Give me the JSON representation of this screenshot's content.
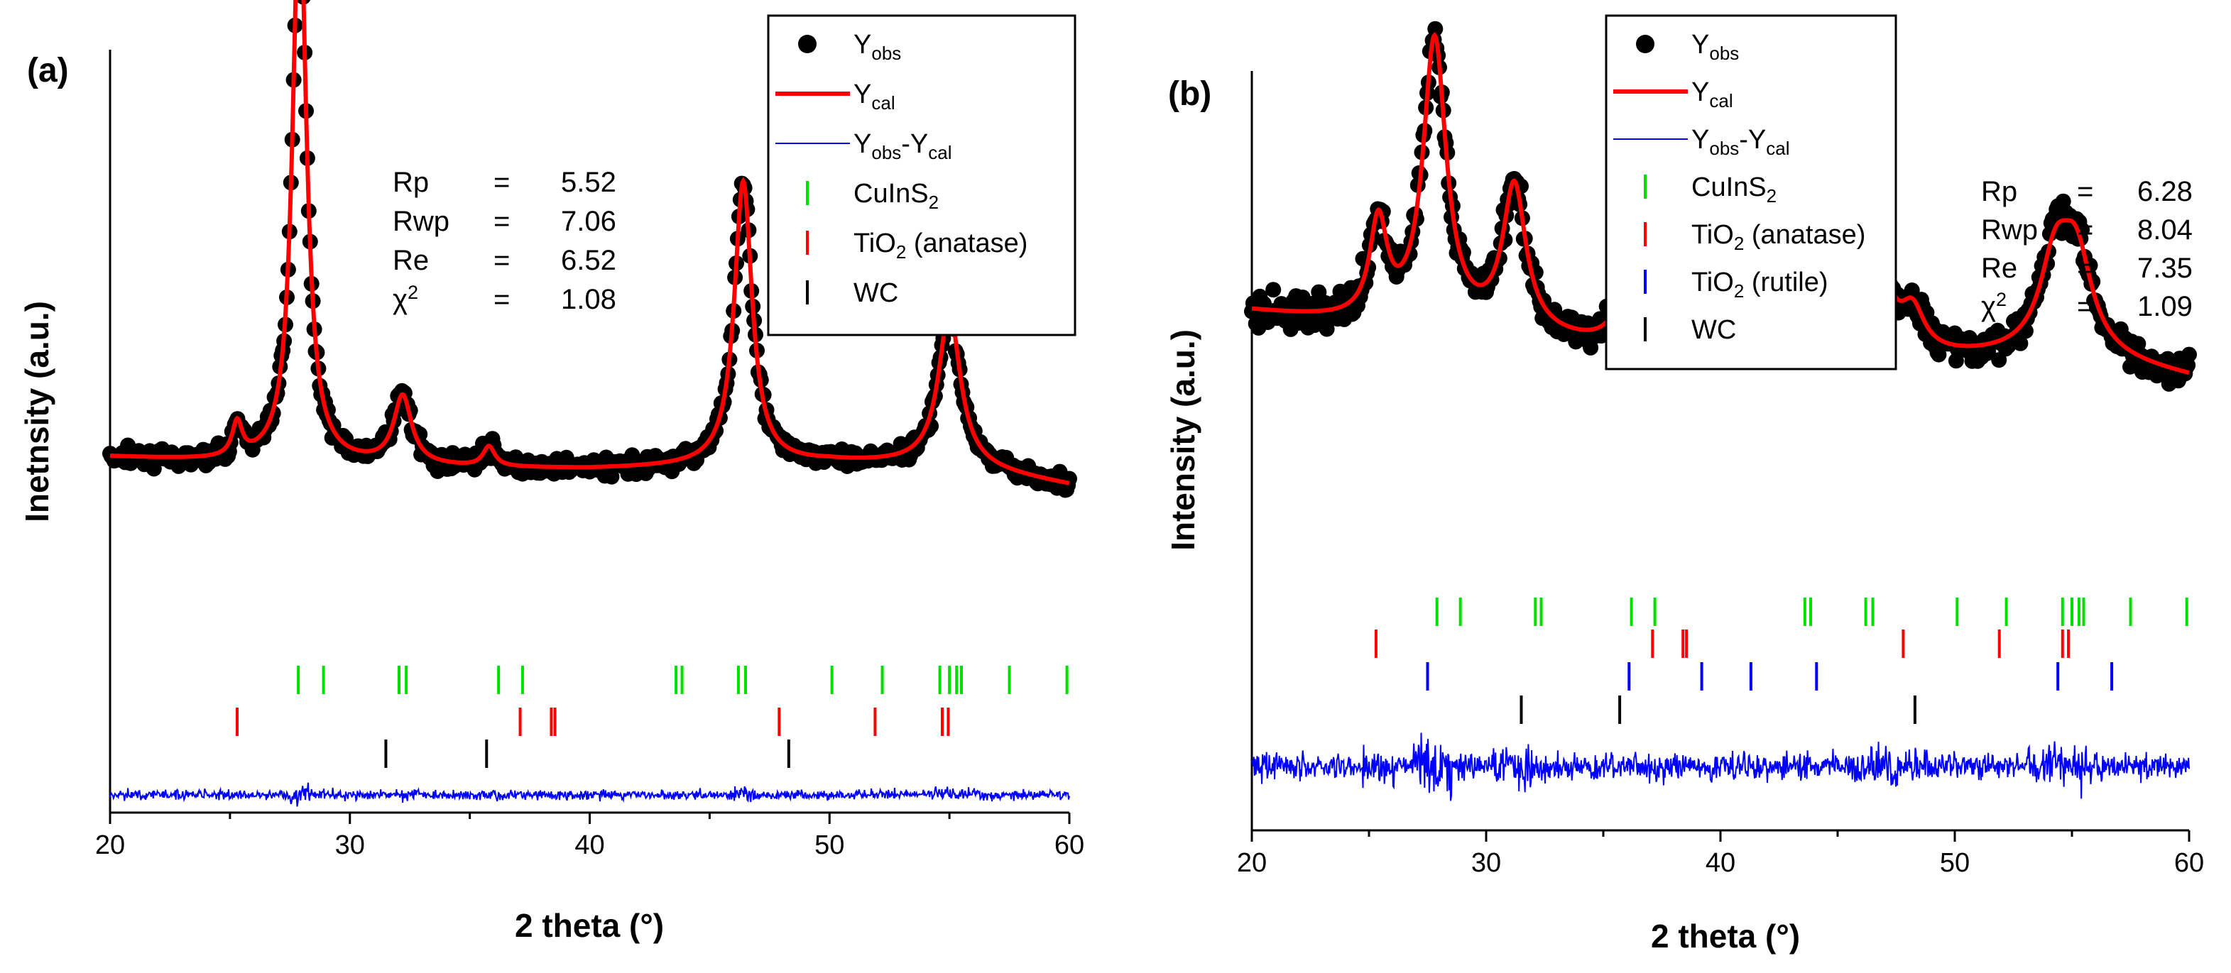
{
  "chart_data": [
    {
      "panel_label": "(a)",
      "type": "scatter",
      "xlabel": "2 theta (°)",
      "ylabel": "Inetnsity (a.u.)",
      "xlim": [
        20,
        60
      ],
      "xticks": [
        "20",
        "30",
        "40",
        "50",
        "60"
      ],
      "legend_position": "top-right",
      "legend": [
        {
          "main": "Y",
          "sub": "obs",
          "mid": "",
          "sub2": "",
          "tail": "",
          "marker": "dot",
          "color": "#000000"
        },
        {
          "main": "Y",
          "sub": "cal",
          "mid": "",
          "sub2": "",
          "tail": "",
          "marker": "line",
          "color": "#ff0000"
        },
        {
          "main": "Y",
          "sub": "obs",
          "mid": "-Y",
          "sub2": "cal",
          "tail": "",
          "marker": "thinline",
          "color": "#0000ff"
        },
        {
          "main": "CuInS",
          "sub": "2",
          "mid": "",
          "sub2": "",
          "tail": "",
          "marker": "tick",
          "color": "#00e000"
        },
        {
          "main": "TiO",
          "sub": "2",
          "mid": "",
          "sub2": "",
          "tail": " (anatase)",
          "marker": "tick",
          "color": "#ff0000"
        },
        {
          "main": "WC",
          "sub": "",
          "mid": "",
          "sub2": "",
          "tail": "",
          "marker": "tick",
          "color": "#000000"
        }
      ],
      "stats": [
        {
          "name": "Rp",
          "sup": "",
          "eq": "=",
          "value": "5.52"
        },
        {
          "name": "Rwp",
          "sup": "",
          "eq": "=",
          "value": "7.06"
        },
        {
          "name": "Re",
          "sup": "",
          "eq": "=",
          "value": "6.52"
        },
        {
          "name": "χ",
          "sup": "2",
          "eq": "=",
          "value": "1.08"
        }
      ],
      "profile": {
        "background": {
          "x": [
            20,
            25,
            30,
            35,
            40,
            45,
            50,
            55,
            60
          ],
          "y": [
            0.37,
            0.36,
            0.355,
            0.35,
            0.348,
            0.352,
            0.36,
            0.355,
            0.32
          ]
        },
        "peaks": [
          {
            "x": 25.3,
            "height": 0.06,
            "width": 0.25
          },
          {
            "x": 27.9,
            "height": 1.0,
            "width": 0.35
          },
          {
            "x": 32.2,
            "height": 0.12,
            "width": 0.45
          },
          {
            "x": 35.8,
            "height": 0.035,
            "width": 0.3
          },
          {
            "x": 46.4,
            "height": 0.5,
            "width": 0.45
          },
          {
            "x": 55.0,
            "height": 0.27,
            "width": 0.55
          }
        ],
        "noise": 0.015,
        "difference_noise": 0.025
      },
      "reflections": [
        {
          "phase": "CuInS2",
          "color": "#00e000",
          "positions": [
            27.85,
            28.9,
            32.05,
            32.35,
            36.2,
            37.2,
            43.6,
            43.85,
            46.2,
            46.5,
            50.1,
            52.2,
            54.6,
            55.0,
            55.3,
            55.5,
            57.5,
            59.9
          ]
        },
        {
          "phase": "TiO2 (anatase)",
          "color": "#ff0000",
          "positions": [
            25.3,
            37.1,
            38.4,
            38.55,
            47.9,
            51.9,
            54.7,
            54.95
          ]
        },
        {
          "phase": "WC",
          "color": "#000000",
          "positions": [
            31.5,
            35.7,
            48.3
          ]
        }
      ]
    },
    {
      "panel_label": "(b)",
      "type": "scatter",
      "xlabel": "2 theta (°)",
      "ylabel": "Intensity (a.u.)",
      "xlim": [
        20,
        60
      ],
      "xticks": [
        "20",
        "30",
        "40",
        "50",
        "60"
      ],
      "legend_position": "top-left",
      "legend": [
        {
          "main": "Y",
          "sub": "obs",
          "mid": "",
          "sub2": "",
          "tail": "",
          "marker": "dot",
          "color": "#000000"
        },
        {
          "main": "Y",
          "sub": "cal",
          "mid": "",
          "sub2": "",
          "tail": "",
          "marker": "line",
          "color": "#ff0000"
        },
        {
          "main": "Y",
          "sub": "obs",
          "mid": "-Y",
          "sub2": "cal",
          "tail": "",
          "marker": "thinline",
          "color": "#0000ff"
        },
        {
          "main": "CuInS",
          "sub": "2",
          "mid": "",
          "sub2": "",
          "tail": "",
          "marker": "tick",
          "color": "#00e000"
        },
        {
          "main": "TiO",
          "sub": "2",
          "mid": "",
          "sub2": "",
          "tail": " (anatase)",
          "marker": "tick",
          "color": "#ff0000"
        },
        {
          "main": "TiO",
          "sub": "2",
          "mid": "",
          "sub2": "",
          "tail": " (rutile)",
          "marker": "tick",
          "color": "#0000ff"
        },
        {
          "main": "WC",
          "sub": "",
          "mid": "",
          "sub2": "",
          "tail": "",
          "marker": "tick",
          "color": "#000000"
        }
      ],
      "stats": [
        {
          "name": "Rp",
          "sup": "",
          "eq": "=",
          "value": "6.28"
        },
        {
          "name": "Rwp",
          "sup": "",
          "eq": "=",
          "value": "8.04"
        },
        {
          "name": "Re",
          "sup": "",
          "eq": "=",
          "value": "7.35"
        },
        {
          "name": "χ",
          "sup": "2",
          "eq": "=",
          "value": "1.09"
        }
      ],
      "profile": {
        "background": {
          "x": [
            20,
            25,
            30,
            35,
            40,
            45,
            50,
            55,
            60
          ],
          "y": [
            0.55,
            0.52,
            0.5,
            0.47,
            0.44,
            0.43,
            0.44,
            0.45,
            0.4
          ]
        },
        "peaks": [
          {
            "x": 25.4,
            "height": 0.22,
            "width": 0.45
          },
          {
            "x": 27.8,
            "height": 0.65,
            "width": 0.6
          },
          {
            "x": 31.2,
            "height": 0.33,
            "width": 0.6
          },
          {
            "x": 35.9,
            "height": 0.11,
            "width": 0.6
          },
          {
            "x": 41.3,
            "height": 0.1,
            "width": 0.6
          },
          {
            "x": 44.2,
            "height": 0.06,
            "width": 0.7
          },
          {
            "x": 46.5,
            "height": 0.3,
            "width": 0.7
          },
          {
            "x": 48.2,
            "height": 0.09,
            "width": 0.6
          },
          {
            "x": 54.3,
            "height": 0.2,
            "width": 0.8
          },
          {
            "x": 55.2,
            "height": 0.2,
            "width": 0.8
          }
        ],
        "noise": 0.035,
        "difference_noise": 0.06
      },
      "reflections": [
        {
          "phase": "CuInS2",
          "color": "#00e000",
          "positions": [
            27.9,
            28.9,
            32.1,
            32.35,
            36.2,
            37.2,
            43.6,
            43.85,
            46.2,
            46.5,
            50.1,
            52.2,
            54.6,
            55.0,
            55.3,
            55.5,
            57.5,
            59.9
          ]
        },
        {
          "phase": "TiO2 (anatase)",
          "color": "#ff0000",
          "positions": [
            25.3,
            37.1,
            38.4,
            38.55,
            47.8,
            51.9,
            54.6,
            54.85
          ]
        },
        {
          "phase": "TiO2 (rutile)",
          "color": "#0000ff",
          "positions": [
            27.5,
            36.1,
            39.2,
            41.3,
            44.1,
            54.4,
            56.7
          ]
        },
        {
          "phase": "WC",
          "color": "#000000",
          "positions": [
            31.5,
            35.7,
            48.3
          ]
        }
      ]
    }
  ]
}
